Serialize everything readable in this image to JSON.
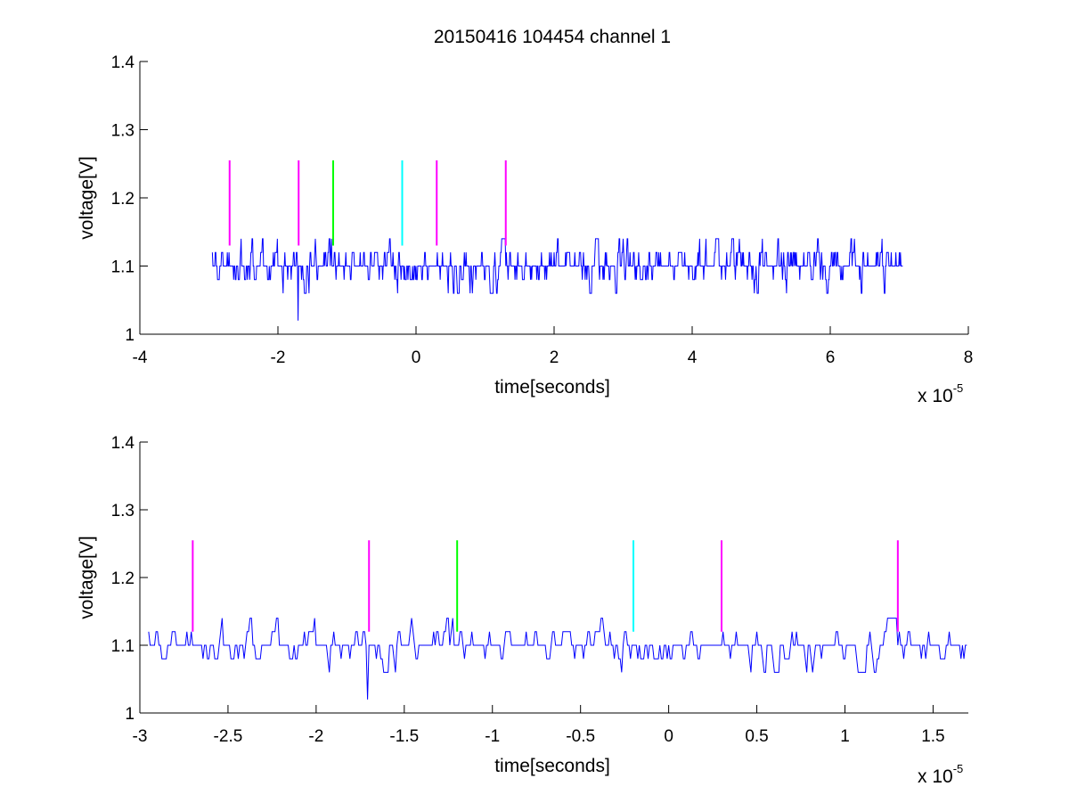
{
  "figure": {
    "title": "20150416 104454 channel 1"
  },
  "chart_data": [
    {
      "type": "line",
      "xlabel": "time[seconds]",
      "ylabel": "voltage[V]",
      "x_exponent_base": "x 10",
      "x_exponent_power": "-5",
      "xlim": [
        -4,
        8
      ],
      "ylim": [
        1,
        1.4
      ],
      "xticks": [
        -4,
        -2,
        0,
        2,
        4,
        6,
        8
      ],
      "xtick_labels": [
        "-4",
        "-2",
        "0",
        "2",
        "4",
        "6",
        "8"
      ],
      "yticks": [
        1,
        1.1,
        1.2,
        1.3,
        1.4
      ],
      "ytick_labels": [
        "1",
        "1.1",
        "1.2",
        "1.3",
        "1.4"
      ],
      "grid": false,
      "series": [
        {
          "color": "#0000ff",
          "x_start": -2.95,
          "x_end": 7.05,
          "baseline": 1.1,
          "levels": [
            1.06,
            1.08,
            1.1,
            1.12,
            1.14
          ],
          "min_value": 1.02,
          "min_at": -1.71
        }
      ],
      "markers": [
        {
          "x": -2.7,
          "color": "#ff00ff",
          "y_top": 1.255
        },
        {
          "x": -1.7,
          "color": "#ff00ff",
          "y_top": 1.255
        },
        {
          "x": -1.2,
          "color": "#00ff00",
          "y_top": 1.255
        },
        {
          "x": -0.2,
          "color": "#00ffff",
          "y_top": 1.255
        },
        {
          "x": 0.3,
          "color": "#ff00ff",
          "y_top": 1.255
        },
        {
          "x": 1.3,
          "color": "#ff00ff",
          "y_top": 1.255
        }
      ]
    },
    {
      "type": "line",
      "xlabel": "time[seconds]",
      "ylabel": "voltage[V]",
      "x_exponent_base": "x 10",
      "x_exponent_power": "-5",
      "xlim": [
        -3.0,
        1.7
      ],
      "ylim": [
        1,
        1.4
      ],
      "xticks": [
        -3,
        -2.5,
        -2,
        -1.5,
        -1,
        -0.5,
        0,
        0.5,
        1,
        1.5
      ],
      "xtick_labels": [
        "-3",
        "-2.5",
        "-2",
        "-1.5",
        "-1",
        "-0.5",
        "0",
        "0.5",
        "1",
        "1.5"
      ],
      "yticks": [
        1,
        1.1,
        1.2,
        1.3,
        1.4
      ],
      "ytick_labels": [
        "1",
        "1.1",
        "1.2",
        "1.3",
        "1.4"
      ],
      "grid": false,
      "series": [
        {
          "color": "#0000ff",
          "x_start": -2.95,
          "x_end": 1.7,
          "baseline": 1.1,
          "levels": [
            1.06,
            1.08,
            1.1,
            1.12,
            1.14
          ],
          "min_value": 1.02,
          "min_at": -1.71
        }
      ],
      "markers": [
        {
          "x": -2.7,
          "color": "#ff00ff",
          "y_top": 1.255,
          "y_bottom": 1.12
        },
        {
          "x": -1.7,
          "color": "#ff00ff",
          "y_top": 1.255,
          "y_bottom": 1.12
        },
        {
          "x": -1.2,
          "color": "#00ff00",
          "y_top": 1.255,
          "y_bottom": 1.12
        },
        {
          "x": -0.2,
          "color": "#00ffff",
          "y_top": 1.255,
          "y_bottom": 1.12
        },
        {
          "x": 0.3,
          "color": "#ff00ff",
          "y_top": 1.255,
          "y_bottom": 1.12
        },
        {
          "x": 1.3,
          "color": "#ff00ff",
          "y_top": 1.255,
          "y_bottom": 1.12
        }
      ]
    }
  ]
}
